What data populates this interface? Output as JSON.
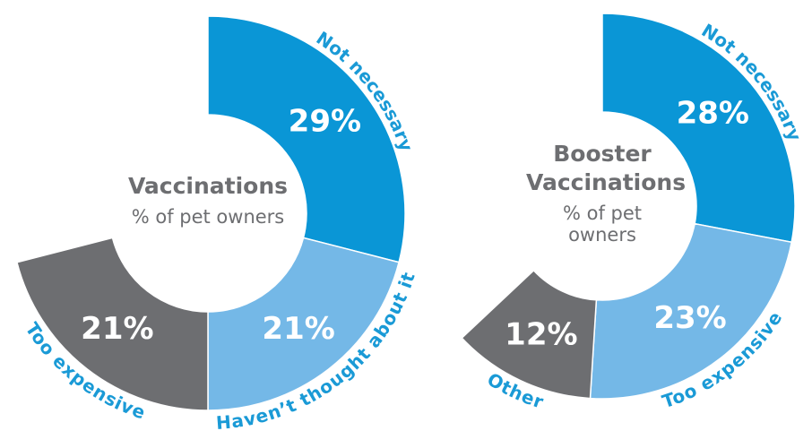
{
  "chart_data": [
    {
      "type": "pie",
      "title": "Vaccinations",
      "subtitle": "% of pet owners",
      "categories": [
        "Not necessary",
        "Haven’t thought about it",
        "Too expensive"
      ],
      "values": [
        29,
        21,
        21
      ],
      "value_labels": [
        "29%",
        "21%",
        "21%"
      ],
      "colors": [
        "#0a96d6",
        "#74b8e7",
        "#6d6e71"
      ]
    },
    {
      "type": "pie",
      "title": "Booster Vaccinations",
      "subtitle": "% of pet owners",
      "categories": [
        "Not necessary",
        "Too expensive",
        "Other"
      ],
      "values": [
        28,
        23,
        12
      ],
      "value_labels": [
        "28%",
        "23%",
        "12%"
      ],
      "colors": [
        "#0a96d6",
        "#74b8e7",
        "#6d6e71"
      ]
    }
  ]
}
